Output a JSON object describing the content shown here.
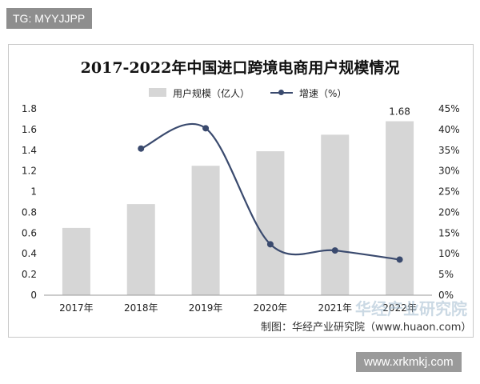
{
  "tag": "TG: MYYJJPP",
  "chart_data": {
    "type": "bar+line",
    "title": "2017-2022年中国进口跨境电商用户规模情况",
    "categories": [
      "2017年",
      "2018年",
      "2019年",
      "2020年",
      "2021年",
      "2022年"
    ],
    "series": [
      {
        "name": "用户规模（亿人）",
        "type": "bar",
        "axis": "left",
        "values": [
          0.65,
          0.88,
          1.25,
          1.39,
          1.55,
          1.68
        ],
        "color": "#d6d6d6"
      },
      {
        "name": "增速（%）",
        "type": "line",
        "axis": "right",
        "values": [
          null,
          35.4,
          40.3,
          12.3,
          10.8,
          8.6
        ],
        "color": "#3a4a6e"
      }
    ],
    "data_labels": [
      {
        "category": "2022年",
        "text": "1.68"
      }
    ],
    "y_left": {
      "range": [
        0,
        1.8
      ],
      "ticks": [
        "0",
        "0.2",
        "0.4",
        "0.6",
        "0.8",
        "1",
        "1.2",
        "1.4",
        "1.6",
        "1.8"
      ]
    },
    "y_right": {
      "range": [
        0,
        45
      ],
      "ticks": [
        "0%",
        "5%",
        "10%",
        "15%",
        "20%",
        "25%",
        "30%",
        "35%",
        "40%",
        "45%"
      ]
    },
    "grid": false,
    "legend_position": "top-center"
  },
  "legend": {
    "bar_label": "用户规模（亿人）",
    "line_label": "增速（%）"
  },
  "credit": "制图：华经产业研究院（www.huaon.com）",
  "watermark": "华经产业研究院",
  "site": "www.xrkmkj.com"
}
